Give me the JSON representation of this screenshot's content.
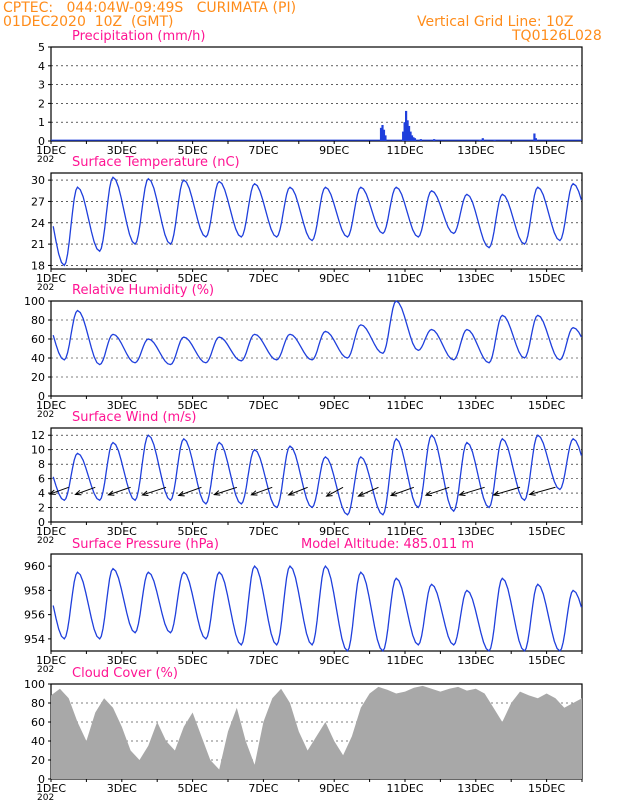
{
  "header": {
    "station": "CPTEC:   044:04W-09:49S   CURIMATA (PI)",
    "datetime": "01DEC2020  10Z  (GMT)",
    "grid_line": "Vertical Grid Line: 10Z",
    "model": "TQ0126L028"
  },
  "colors": {
    "header": "#ff8c1a",
    "panel_title": "#ff1493",
    "line": "#1f3fdc",
    "precip_bar": "#1f3fdc",
    "cloud_fill": "#a8a8a8"
  },
  "x_axis": {
    "unit": "hours since 01DEC 00Z",
    "range": [
      0,
      360
    ],
    "tick_labels": [
      "1DEC",
      "3DEC",
      "5DEC",
      "7DEC",
      "9DEC",
      "11DEC",
      "13DEC",
      "15DEC"
    ],
    "tick_hours": [
      0,
      48,
      96,
      144,
      192,
      240,
      288,
      336
    ],
    "year_stub": "202"
  },
  "chart_data": [
    {
      "id": "precip",
      "type": "bar",
      "title": "Precipitation  (mm/h)",
      "ylim": [
        0,
        5
      ],
      "yticks": [
        0,
        1,
        2,
        3,
        4,
        5
      ],
      "grid": true,
      "bars": [
        [
          223,
          0.7
        ],
        [
          224,
          0.85
        ],
        [
          225,
          0.6
        ],
        [
          226,
          0.3
        ],
        [
          238,
          0.5
        ],
        [
          239,
          1.0
        ],
        [
          240,
          1.6
        ],
        [
          241,
          1.1
        ],
        [
          242,
          0.8
        ],
        [
          243,
          0.5
        ],
        [
          244,
          0.3
        ],
        [
          245,
          0.2
        ],
        [
          246,
          0.15
        ],
        [
          250,
          0.1
        ],
        [
          259,
          0.1
        ],
        [
          290,
          0.05
        ],
        [
          292,
          0.15
        ],
        [
          300,
          0.05
        ],
        [
          327,
          0.4
        ],
        [
          328,
          0.15
        ]
      ]
    },
    {
      "id": "temp",
      "type": "line",
      "title": "Surface Temperature  (nC)",
      "ylim": [
        17.5,
        31
      ],
      "yticks": [
        18,
        21,
        24,
        27,
        30
      ],
      "grid": true,
      "daily": [
        {
          "min": 18.0,
          "max": 29.0
        },
        {
          "min": 20.0,
          "max": 30.4
        },
        {
          "min": 21.0,
          "max": 30.2
        },
        {
          "min": 21.0,
          "max": 30.0
        },
        {
          "min": 22.0,
          "max": 29.8
        },
        {
          "min": 22.0,
          "max": 29.5
        },
        {
          "min": 22.0,
          "max": 29.0
        },
        {
          "min": 21.5,
          "max": 29.0
        },
        {
          "min": 22.0,
          "max": 29.0
        },
        {
          "min": 22.5,
          "max": 29.0
        },
        {
          "min": 22.0,
          "max": 28.5
        },
        {
          "min": 22.5,
          "max": 28.0
        },
        {
          "min": 20.5,
          "max": 28.0
        },
        {
          "min": 21.0,
          "max": 29.0
        },
        {
          "min": 21.5,
          "max": 29.5
        },
        {
          "min": 22.0,
          "max": 30.2
        }
      ]
    },
    {
      "id": "rh",
      "type": "line",
      "title": "Relative Humidity  (%)",
      "ylim": [
        0,
        100
      ],
      "yticks": [
        0,
        20,
        40,
        60,
        80,
        100
      ],
      "grid": true,
      "daily": [
        {
          "min": 38,
          "max": 90
        },
        {
          "min": 33,
          "max": 65
        },
        {
          "min": 35,
          "max": 60
        },
        {
          "min": 33,
          "max": 62
        },
        {
          "min": 35,
          "max": 62
        },
        {
          "min": 37,
          "max": 65
        },
        {
          "min": 38,
          "max": 65
        },
        {
          "min": 38,
          "max": 68
        },
        {
          "min": 40,
          "max": 75
        },
        {
          "min": 45,
          "max": 100
        },
        {
          "min": 48,
          "max": 70
        },
        {
          "min": 38,
          "max": 70
        },
        {
          "min": 35,
          "max": 85
        },
        {
          "min": 40,
          "max": 85
        },
        {
          "min": 38,
          "max": 72
        },
        {
          "min": 40,
          "max": 60
        }
      ]
    },
    {
      "id": "wind",
      "type": "line",
      "title": "Surface Wind  (m/s)",
      "ylim": [
        0,
        13
      ],
      "yticks": [
        0,
        2,
        4,
        6,
        8,
        10,
        12
      ],
      "grid": true,
      "daily": [
        {
          "min": 3.0,
          "max": 9.5
        },
        {
          "min": 3.0,
          "max": 11.0
        },
        {
          "min": 3.0,
          "max": 12.0
        },
        {
          "min": 3.0,
          "max": 11.5
        },
        {
          "min": 2.5,
          "max": 11.0
        },
        {
          "min": 2.5,
          "max": 10.0
        },
        {
          "min": 2.0,
          "max": 10.5
        },
        {
          "min": 2.0,
          "max": 9.0
        },
        {
          "min": 1.0,
          "max": 9.0
        },
        {
          "min": 1.0,
          "max": 11.5
        },
        {
          "min": 2.0,
          "max": 12.0
        },
        {
          "min": 1.5,
          "max": 11.0
        },
        {
          "min": 2.0,
          "max": 11.5
        },
        {
          "min": 3.0,
          "max": 12.0
        },
        {
          "min": 4.5,
          "max": 11.5
        },
        {
          "min": 4.0,
          "max": 10.5
        }
      ],
      "vectors": [
        [
          12,
          6.5,
          0.65
        ],
        [
          30,
          7.0,
          0.65
        ],
        [
          54,
          8.0,
          0.62
        ],
        [
          78,
          8.5,
          0.6
        ],
        [
          102,
          8.5,
          0.65
        ],
        [
          126,
          8.0,
          0.6
        ],
        [
          150,
          7.5,
          0.65
        ],
        [
          174,
          7.0,
          0.7
        ],
        [
          198,
          7.0,
          0.85
        ],
        [
          222,
          8.0,
          0.75
        ],
        [
          246,
          8.5,
          0.65
        ],
        [
          270,
          8.5,
          0.62
        ],
        [
          294,
          9.0,
          0.57
        ],
        [
          318,
          9.5,
          0.55
        ],
        [
          342,
          9.0,
          0.53
        ]
      ]
    },
    {
      "id": "press",
      "type": "line",
      "title": "Surface Pressure  (hPa)",
      "annotation": "Model Altitude: 485.011  m",
      "ylim": [
        953,
        961
      ],
      "yticks": [
        954,
        956,
        958,
        960
      ],
      "grid": false,
      "daily": [
        {
          "min": 954.0,
          "max": 959.5
        },
        {
          "min": 954.0,
          "max": 959.8
        },
        {
          "min": 954.5,
          "max": 959.5
        },
        {
          "min": 954.5,
          "max": 959.5
        },
        {
          "min": 954.0,
          "max": 959.5
        },
        {
          "min": 953.5,
          "max": 960.0
        },
        {
          "min": 953.5,
          "max": 960.0
        },
        {
          "min": 953.5,
          "max": 960.0
        },
        {
          "min": 953.0,
          "max": 959.5
        },
        {
          "min": 953.0,
          "max": 959.0
        },
        {
          "min": 953.5,
          "max": 958.5
        },
        {
          "min": 953.5,
          "max": 958.0
        },
        {
          "min": 953.0,
          "max": 959.0
        },
        {
          "min": 953.0,
          "max": 958.5
        },
        {
          "min": 953.0,
          "max": 958.0
        },
        {
          "min": 953.5,
          "max": 957.5
        }
      ]
    },
    {
      "id": "cloud",
      "type": "area",
      "title": "Cloud Cover  (%)",
      "ylim": [
        0,
        100
      ],
      "yticks": [
        0,
        20,
        40,
        60,
        80,
        100
      ],
      "grid": true,
      "series": [
        [
          0,
          88
        ],
        [
          6,
          95
        ],
        [
          12,
          85
        ],
        [
          18,
          60
        ],
        [
          24,
          40
        ],
        [
          30,
          70
        ],
        [
          36,
          85
        ],
        [
          42,
          75
        ],
        [
          48,
          55
        ],
        [
          54,
          30
        ],
        [
          60,
          20
        ],
        [
          66,
          35
        ],
        [
          72,
          60
        ],
        [
          78,
          40
        ],
        [
          84,
          30
        ],
        [
          90,
          55
        ],
        [
          96,
          70
        ],
        [
          102,
          45
        ],
        [
          108,
          20
        ],
        [
          114,
          10
        ],
        [
          120,
          50
        ],
        [
          126,
          75
        ],
        [
          132,
          40
        ],
        [
          138,
          15
        ],
        [
          144,
          60
        ],
        [
          150,
          85
        ],
        [
          156,
          95
        ],
        [
          162,
          80
        ],
        [
          168,
          50
        ],
        [
          174,
          30
        ],
        [
          180,
          45
        ],
        [
          186,
          60
        ],
        [
          192,
          40
        ],
        [
          198,
          25
        ],
        [
          204,
          45
        ],
        [
          210,
          75
        ],
        [
          216,
          90
        ],
        [
          222,
          97
        ],
        [
          228,
          94
        ],
        [
          234,
          90
        ],
        [
          240,
          92
        ],
        [
          246,
          96
        ],
        [
          252,
          98
        ],
        [
          258,
          95
        ],
        [
          264,
          92
        ],
        [
          270,
          95
        ],
        [
          276,
          97
        ],
        [
          282,
          93
        ],
        [
          288,
          95
        ],
        [
          294,
          90
        ],
        [
          300,
          75
        ],
        [
          306,
          60
        ],
        [
          312,
          80
        ],
        [
          318,
          92
        ],
        [
          324,
          88
        ],
        [
          330,
          85
        ],
        [
          336,
          90
        ],
        [
          342,
          85
        ],
        [
          348,
          75
        ],
        [
          354,
          80
        ],
        [
          360,
          85
        ]
      ]
    }
  ]
}
